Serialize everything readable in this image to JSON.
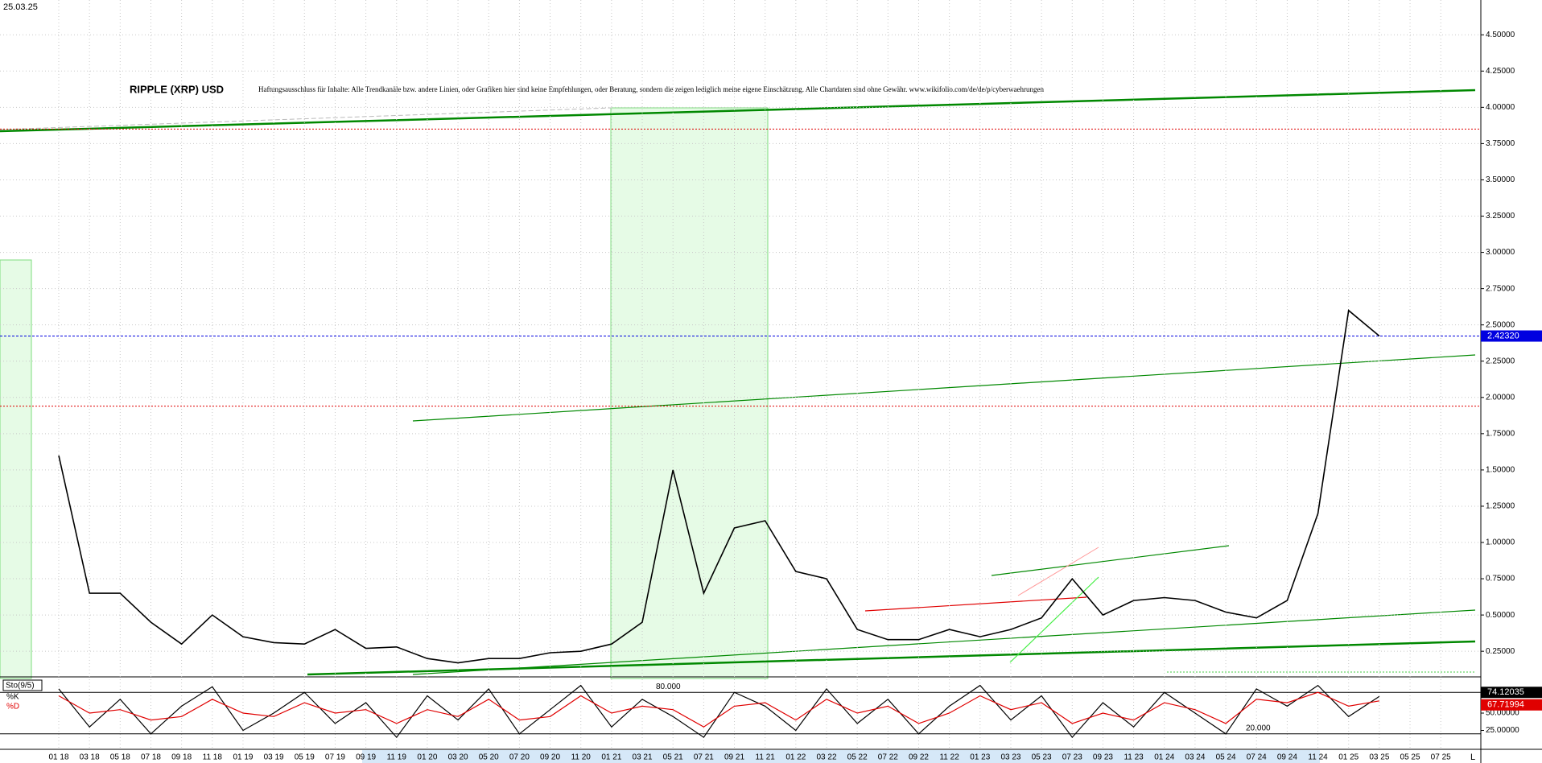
{
  "chart_data": [
    {
      "type": "line",
      "title": "RIPPLE (XRP) USD",
      "disclaimer": "Haftungsausschluss für Inhalte: Alle Trendkanäle bzw. andere Linien, oder Grafiken hier sind keine Empfehlungen, oder Beratung, sondern die zeigen lediglich meine eigene Einschätzung. Alle Chartdaten sind ohne Gewähr. www.wikifolio.com/de/de/p/cyberwaehrungen",
      "date_label": "25.03.25",
      "x_end_label": "L",
      "categories": [
        "01 18",
        "03 18",
        "05 18",
        "07 18",
        "09 18",
        "11 18",
        "01 19",
        "03 19",
        "05 19",
        "07 19",
        "09 19",
        "11 19",
        "01 20",
        "03 20",
        "05 20",
        "07 20",
        "09 20",
        "11 20",
        "01 21",
        "03 21",
        "05 21",
        "07 21",
        "09 21",
        "11 21",
        "01 22",
        "03 22",
        "05 22",
        "07 22",
        "09 22",
        "11 22",
        "01 23",
        "03 23",
        "05 23",
        "07 23",
        "09 23",
        "11 23",
        "01 24",
        "03 24",
        "05 24",
        "07 24",
        "09 24",
        "11 24",
        "01 25",
        "03 25",
        "05 25",
        "07 25"
      ],
      "values": [
        1.6,
        0.65,
        0.65,
        0.45,
        0.3,
        0.5,
        0.35,
        0.31,
        0.3,
        0.4,
        0.27,
        0.28,
        0.2,
        0.17,
        0.2,
        0.2,
        0.24,
        0.25,
        0.3,
        0.45,
        1.5,
        0.65,
        1.1,
        1.15,
        0.8,
        0.75,
        0.4,
        0.33,
        0.33,
        0.4,
        0.35,
        0.4,
        0.48,
        0.75,
        0.5,
        0.6,
        0.62,
        0.6,
        0.52,
        0.48,
        0.6,
        1.2,
        2.6,
        2.4232,
        null,
        null
      ],
      "color": "#000000",
      "ylim": [
        0.09,
        4.74
      ],
      "yticks": [
        {
          "value": 0.25,
          "label": "0.25000"
        },
        {
          "value": 0.5,
          "label": "0.50000"
        },
        {
          "value": 0.75,
          "label": "0.75000"
        },
        {
          "value": 1.0,
          "label": "1.00000"
        },
        {
          "value": 1.25,
          "label": "1.25000"
        },
        {
          "value": 1.5,
          "label": "1.50000"
        },
        {
          "value": 1.75,
          "label": "1.75000"
        },
        {
          "value": 2.0,
          "label": "2.00000"
        },
        {
          "value": 2.25,
          "label": "2.25000"
        },
        {
          "value": 2.5,
          "label": "2.50000"
        },
        {
          "value": 2.75,
          "label": "2.75000"
        },
        {
          "value": 3.0,
          "label": "3.00000"
        },
        {
          "value": 3.25,
          "label": "3.25000"
        },
        {
          "value": 3.5,
          "label": "3.50000"
        },
        {
          "value": 3.75,
          "label": "3.75000"
        },
        {
          "value": 4.0,
          "label": "4.00000"
        },
        {
          "value": 4.25,
          "label": "4.25000"
        },
        {
          "value": 4.5,
          "label": "4.50000"
        }
      ],
      "reference_lines": [
        3.85,
        1.94
      ],
      "reference_color": "#e00000",
      "current_price": {
        "value": 2.4232,
        "label": "2.42320"
      },
      "current_color": "#0000e0",
      "grid": true
    },
    {
      "type": "line",
      "title": "Sto(9/5)",
      "series": [
        {
          "name": "%K",
          "color": "#000000",
          "values": [
            85,
            30,
            70,
            20,
            60,
            88,
            25,
            50,
            80,
            35,
            65,
            15,
            75,
            40,
            85,
            20,
            55,
            90,
            30,
            70,
            45,
            15,
            80,
            60,
            25,
            85,
            35,
            70,
            20,
            60,
            90,
            40,
            75,
            15,
            65,
            30,
            80,
            50,
            20,
            85,
            60,
            90,
            45,
            74.12035,
            null,
            null
          ]
        },
        {
          "name": "%D",
          "color": "#e00000",
          "values": [
            75,
            50,
            55,
            40,
            45,
            70,
            50,
            45,
            65,
            50,
            55,
            35,
            55,
            45,
            70,
            40,
            45,
            75,
            50,
            60,
            55,
            30,
            60,
            65,
            40,
            70,
            50,
            60,
            35,
            50,
            75,
            55,
            65,
            35,
            50,
            40,
            65,
            55,
            35,
            70,
            65,
            80,
            60,
            67.71994,
            null,
            null
          ]
        }
      ],
      "ylim": [
        0,
        100
      ],
      "yticks": [
        {
          "value": 25,
          "label": "25.00000"
        },
        {
          "value": 50,
          "label": "50.00000"
        }
      ],
      "levels": [
        {
          "value": 80,
          "label": "80.000"
        },
        {
          "value": 20,
          "label": "20.000"
        }
      ]
    }
  ]
}
